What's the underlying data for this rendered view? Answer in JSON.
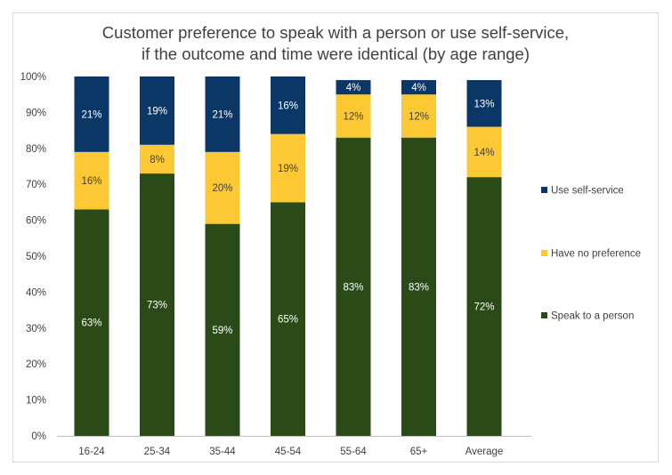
{
  "chart_data": {
    "type": "bar",
    "stacked": true,
    "title": "Customer preference to speak with a person or use self-service,",
    "subtitle": "if the outcome and time were identical (by age range)",
    "xlabel": "",
    "ylabel": "",
    "ylim": [
      0,
      100
    ],
    "y_ticks": [
      "0%",
      "10%",
      "20%",
      "30%",
      "40%",
      "50%",
      "60%",
      "70%",
      "80%",
      "90%",
      "100%"
    ],
    "categories": [
      "16-24",
      "25-34",
      "35-44",
      "45-54",
      "55-64",
      "65+",
      "Average"
    ],
    "series": [
      {
        "name": "Speak to a person",
        "color": "#2a4a18",
        "values": [
          63,
          73,
          59,
          65,
          83,
          83,
          72
        ],
        "labels": [
          "63%",
          "73%",
          "59%",
          "65%",
          "83%",
          "83%",
          "72%"
        ]
      },
      {
        "name": "Have no preference",
        "color": "#fcc934",
        "values": [
          16,
          8,
          20,
          19,
          12,
          12,
          14
        ],
        "labels": [
          "16%",
          "8%",
          "20%",
          "19%",
          "12%",
          "12%",
          "14%"
        ]
      },
      {
        "name": "Use self-service",
        "color": "#0b3767",
        "values": [
          21,
          19,
          21,
          16,
          4,
          4,
          13
        ],
        "labels": [
          "21%",
          "19%",
          "21%",
          "16%",
          "4%",
          "4%",
          "13%"
        ]
      }
    ],
    "legend": {
      "position": "right",
      "order": [
        "Use self-service",
        "Have no preference",
        "Speak to a person"
      ]
    },
    "colors": {
      "axis": "#bfbfbf",
      "text": "#404040",
      "label_on_dark": "#ffffff",
      "label_on_light": "#404040"
    }
  }
}
